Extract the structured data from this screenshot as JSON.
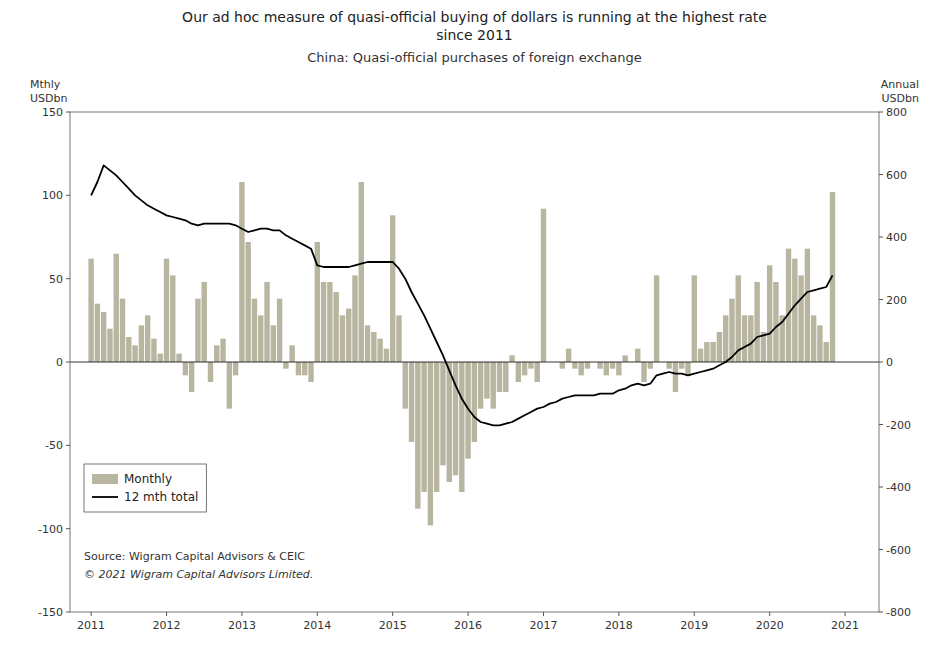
{
  "chart_data": {
    "type": "bar",
    "title": "Our ad hoc measure of quasi-official buying of dollars is running at the highest rate\nsince 2011",
    "subtitle": "China: Quasi-official purchases of foreign exchange",
    "y_label": "Mthly\nUSDbn",
    "y2_label": "Annual\nUSDbn",
    "annotations": [
      {
        "text": "Source: Wigram Capital Advisors & CEIC"
      },
      {
        "text": "© 2021 Wigram Capital Advisors Limited."
      }
    ],
    "x": [
      2011,
      2011.0833333333,
      2011.1666666667,
      2011.25,
      2011.3333333333,
      2011.4166666667,
      2011.5,
      2011.5833333333,
      2011.6666666667,
      2011.75,
      2011.8333333333,
      2011.9166666667,
      2012,
      2012.0833333333,
      2012.1666666667,
      2012.25,
      2012.3333333333,
      2012.4166666667,
      2012.5,
      2012.5833333333,
      2012.6666666667,
      2012.75,
      2012.8333333333,
      2012.9166666667,
      2013,
      2013.0833333333,
      2013.1666666667,
      2013.25,
      2013.3333333333,
      2013.4166666667,
      2013.5,
      2013.5833333333,
      2013.6666666667,
      2013.75,
      2013.8333333333,
      2013.9166666667,
      2014,
      2014.0833333333,
      2014.1666666667,
      2014.25,
      2014.3333333333,
      2014.4166666667,
      2014.5,
      2014.5833333333,
      2014.6666666667,
      2014.75,
      2014.8333333333,
      2014.9166666667,
      2015,
      2015.0833333333,
      2015.1666666667,
      2015.25,
      2015.3333333333,
      2015.4166666667,
      2015.5,
      2015.5833333333,
      2015.6666666667,
      2015.75,
      2015.8333333333,
      2015.9166666667,
      2016,
      2016.0833333333,
      2016.1666666667,
      2016.25,
      2016.3333333333,
      2016.4166666667,
      2016.5,
      2016.5833333333,
      2016.6666666667,
      2016.75,
      2016.8333333333,
      2016.9166666667,
      2017,
      2017.0833333333,
      2017.1666666667,
      2017.25,
      2017.3333333333,
      2017.4166666667,
      2017.5,
      2017.5833333333,
      2017.6666666667,
      2017.75,
      2017.8333333333,
      2017.9166666667,
      2018,
      2018.0833333333,
      2018.1666666667,
      2018.25,
      2018.3333333333,
      2018.4166666667,
      2018.5,
      2018.5833333333,
      2018.6666666667,
      2018.75,
      2018.8333333333,
      2018.9166666667,
      2019,
      2019.0833333333,
      2019.1666666667,
      2019.25,
      2019.3333333333,
      2019.4166666667,
      2019.5,
      2019.5833333333,
      2019.6666666667,
      2019.75,
      2019.8333333333,
      2019.9166666667,
      2020,
      2020.0833333333,
      2020.1666666667,
      2020.25,
      2020.3333333333,
      2020.4166666667,
      2020.5,
      2020.5833333333,
      2020.6666666667,
      2020.75,
      2020.8333333333
    ],
    "series": [
      {
        "name": "Monthly",
        "type": "bar",
        "color": "#b8b5a0",
        "values": [
          62,
          35,
          30,
          20,
          65,
          38,
          15,
          10,
          22,
          28,
          14,
          5,
          62,
          52,
          5,
          -8,
          -18,
          38,
          48,
          -12,
          10,
          14,
          -28,
          -8,
          108,
          72,
          38,
          28,
          48,
          22,
          38,
          -4,
          10,
          -8,
          -8,
          -12,
          72,
          48,
          48,
          42,
          28,
          32,
          52,
          108,
          22,
          18,
          14,
          8,
          88,
          28,
          -28,
          -48,
          -88,
          -78,
          -98,
          -78,
          -62,
          -72,
          -68,
          -78,
          -58,
          -48,
          -28,
          -22,
          -28,
          -18,
          -18,
          4,
          -12,
          -8,
          -4,
          -12,
          92,
          0,
          0,
          -4,
          8,
          -4,
          -8,
          -4,
          0,
          -4,
          -8,
          -4,
          -8,
          4,
          0,
          8,
          -12,
          -4,
          52,
          0,
          -4,
          -18,
          -4,
          -8,
          52,
          8,
          12,
          12,
          18,
          28,
          38,
          52,
          28,
          28,
          48,
          18,
          58,
          48,
          28,
          68,
          62,
          52,
          68,
          28,
          22,
          12,
          102
        ]
      },
      {
        "name": "12 mth total",
        "type": "line",
        "color": "#000000",
        "values": [
          100,
          108,
          118,
          115,
          112,
          108,
          104,
          100,
          97,
          94,
          92,
          90,
          88,
          87,
          86,
          85,
          83,
          82,
          83,
          83,
          83,
          83,
          83,
          82,
          80,
          78,
          79,
          80,
          80,
          79,
          79,
          76,
          74,
          72,
          70,
          68,
          58,
          57,
          57,
          57,
          57,
          57,
          58,
          59,
          60,
          60,
          60,
          60,
          60,
          56,
          50,
          42,
          35,
          28,
          20,
          12,
          4,
          -5,
          -14,
          -22,
          -28,
          -33,
          -36,
          -37,
          -38,
          -38,
          -37,
          -36,
          -34,
          -32,
          -30,
          -28,
          -27,
          -25,
          -24,
          -22,
          -21,
          -20,
          -20,
          -20,
          -20,
          -19,
          -19,
          -19,
          -17,
          -16,
          -14,
          -13,
          -14,
          -13,
          -8,
          -7,
          -6,
          -7,
          -7,
          -8,
          -7,
          -6,
          -5,
          -4,
          -2,
          0,
          3,
          7,
          9,
          11,
          15,
          16,
          17,
          21,
          24,
          29,
          34,
          38,
          42,
          43,
          44,
          45,
          52
        ]
      }
    ],
    "xlim": [
      2010.72,
      2021.45
    ],
    "xticks": [
      2011,
      2012,
      2013,
      2014,
      2015,
      2016,
      2017,
      2018,
      2019,
      2020,
      2021
    ],
    "ylim": [
      -150,
      150
    ],
    "yticks": [
      -150,
      -100,
      -50,
      0,
      50,
      100,
      150
    ],
    "y2lim": [
      -800,
      800
    ],
    "y2ticks": [
      -800,
      -600,
      -400,
      -200,
      0,
      200,
      400,
      600,
      800
    ],
    "grid": false,
    "legend": "lower left"
  }
}
